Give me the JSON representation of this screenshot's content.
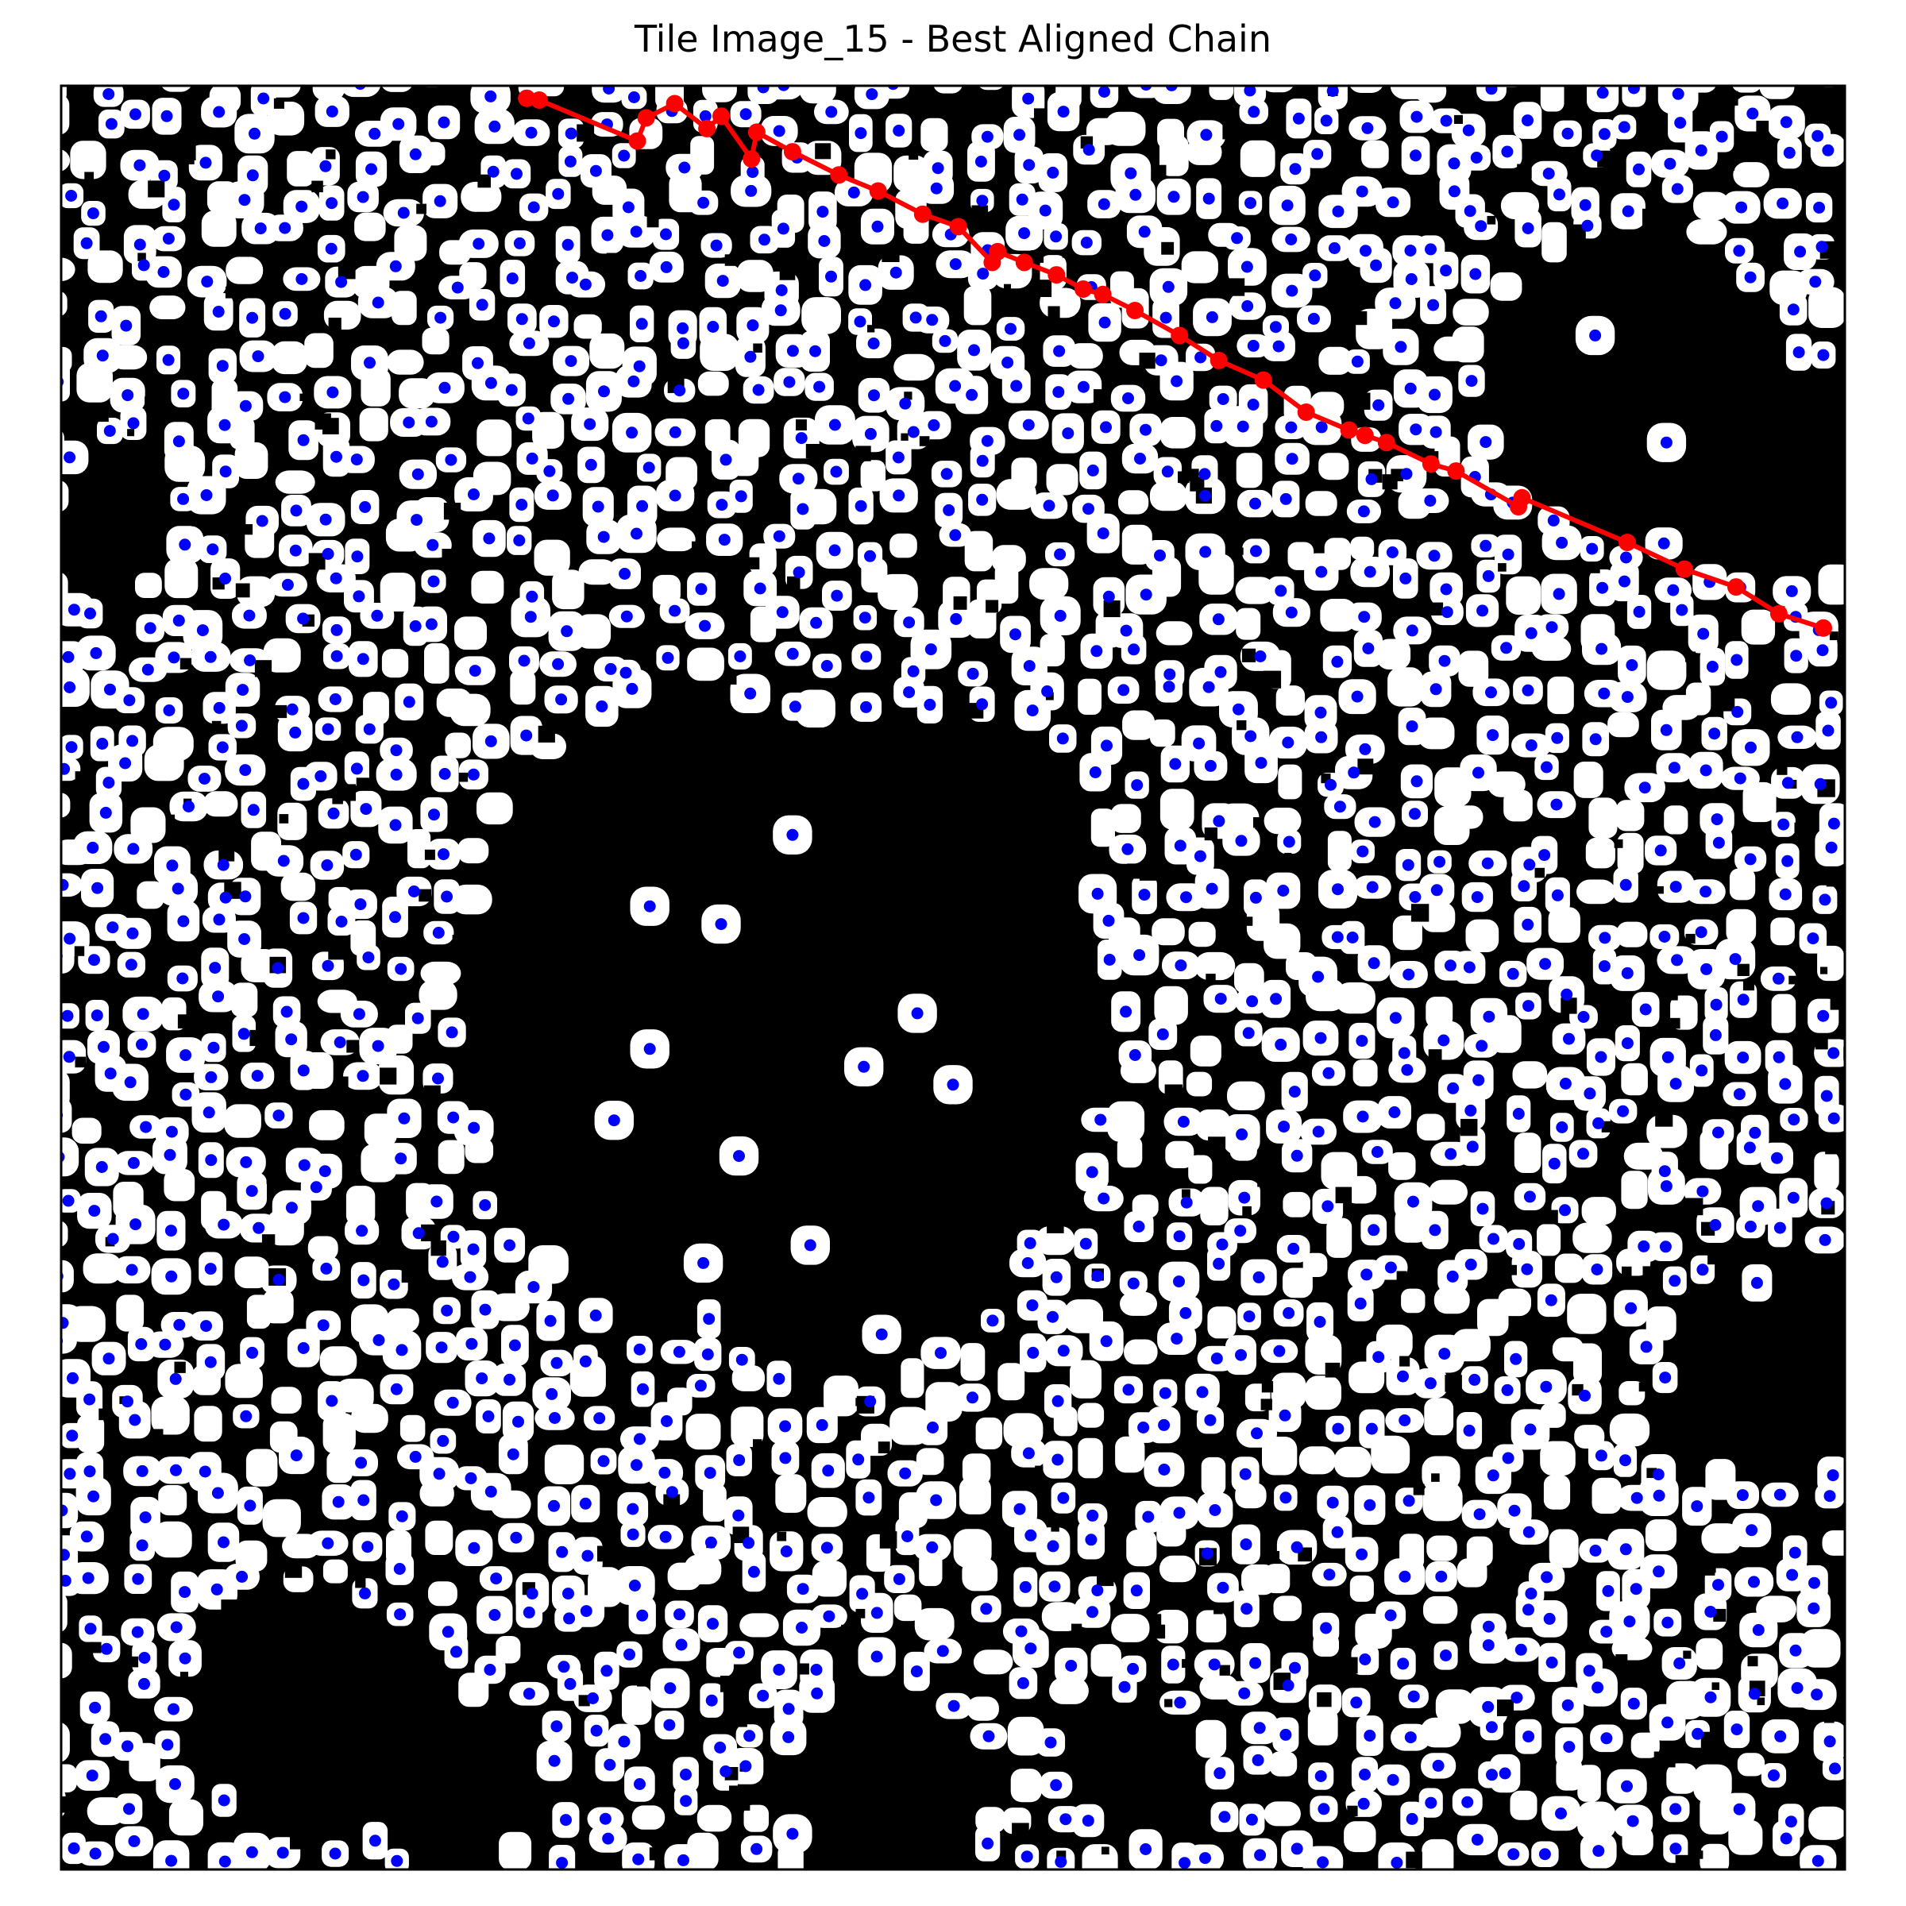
{
  "title": "Tile Image_15 - Best Aligned Chain",
  "colors": {
    "background": "#000000",
    "foreground": "#ffffff",
    "centroid": "#0000ff",
    "chain": "#ff0000",
    "frame": "#000000"
  },
  "chain": {
    "name": "best-aligned-chain",
    "description_visible": false,
    "points": [
      [
        0.261,
        0.007
      ],
      [
        0.268,
        0.008
      ],
      [
        0.323,
        0.031
      ],
      [
        0.328,
        0.018
      ],
      [
        0.344,
        0.01
      ],
      [
        0.362,
        0.024
      ],
      [
        0.37,
        0.017
      ],
      [
        0.387,
        0.041
      ],
      [
        0.39,
        0.026
      ],
      [
        0.41,
        0.037
      ],
      [
        0.436,
        0.05
      ],
      [
        0.458,
        0.059
      ],
      [
        0.483,
        0.072
      ],
      [
        0.503,
        0.079
      ],
      [
        0.522,
        0.099
      ],
      [
        0.525,
        0.093
      ],
      [
        0.54,
        0.099
      ],
      [
        0.558,
        0.106
      ],
      [
        0.573,
        0.114
      ],
      [
        0.584,
        0.117
      ],
      [
        0.602,
        0.126
      ],
      [
        0.627,
        0.14
      ],
      [
        0.649,
        0.154
      ],
      [
        0.674,
        0.165
      ],
      [
        0.698,
        0.183
      ],
      [
        0.722,
        0.193
      ],
      [
        0.731,
        0.196
      ],
      [
        0.743,
        0.2
      ],
      [
        0.768,
        0.212
      ],
      [
        0.782,
        0.216
      ],
      [
        0.817,
        0.236
      ],
      [
        0.819,
        0.231
      ],
      [
        0.878,
        0.256
      ],
      [
        0.91,
        0.271
      ],
      [
        0.939,
        0.281
      ],
      [
        0.963,
        0.296
      ],
      [
        0.988,
        0.304
      ]
    ]
  }
}
